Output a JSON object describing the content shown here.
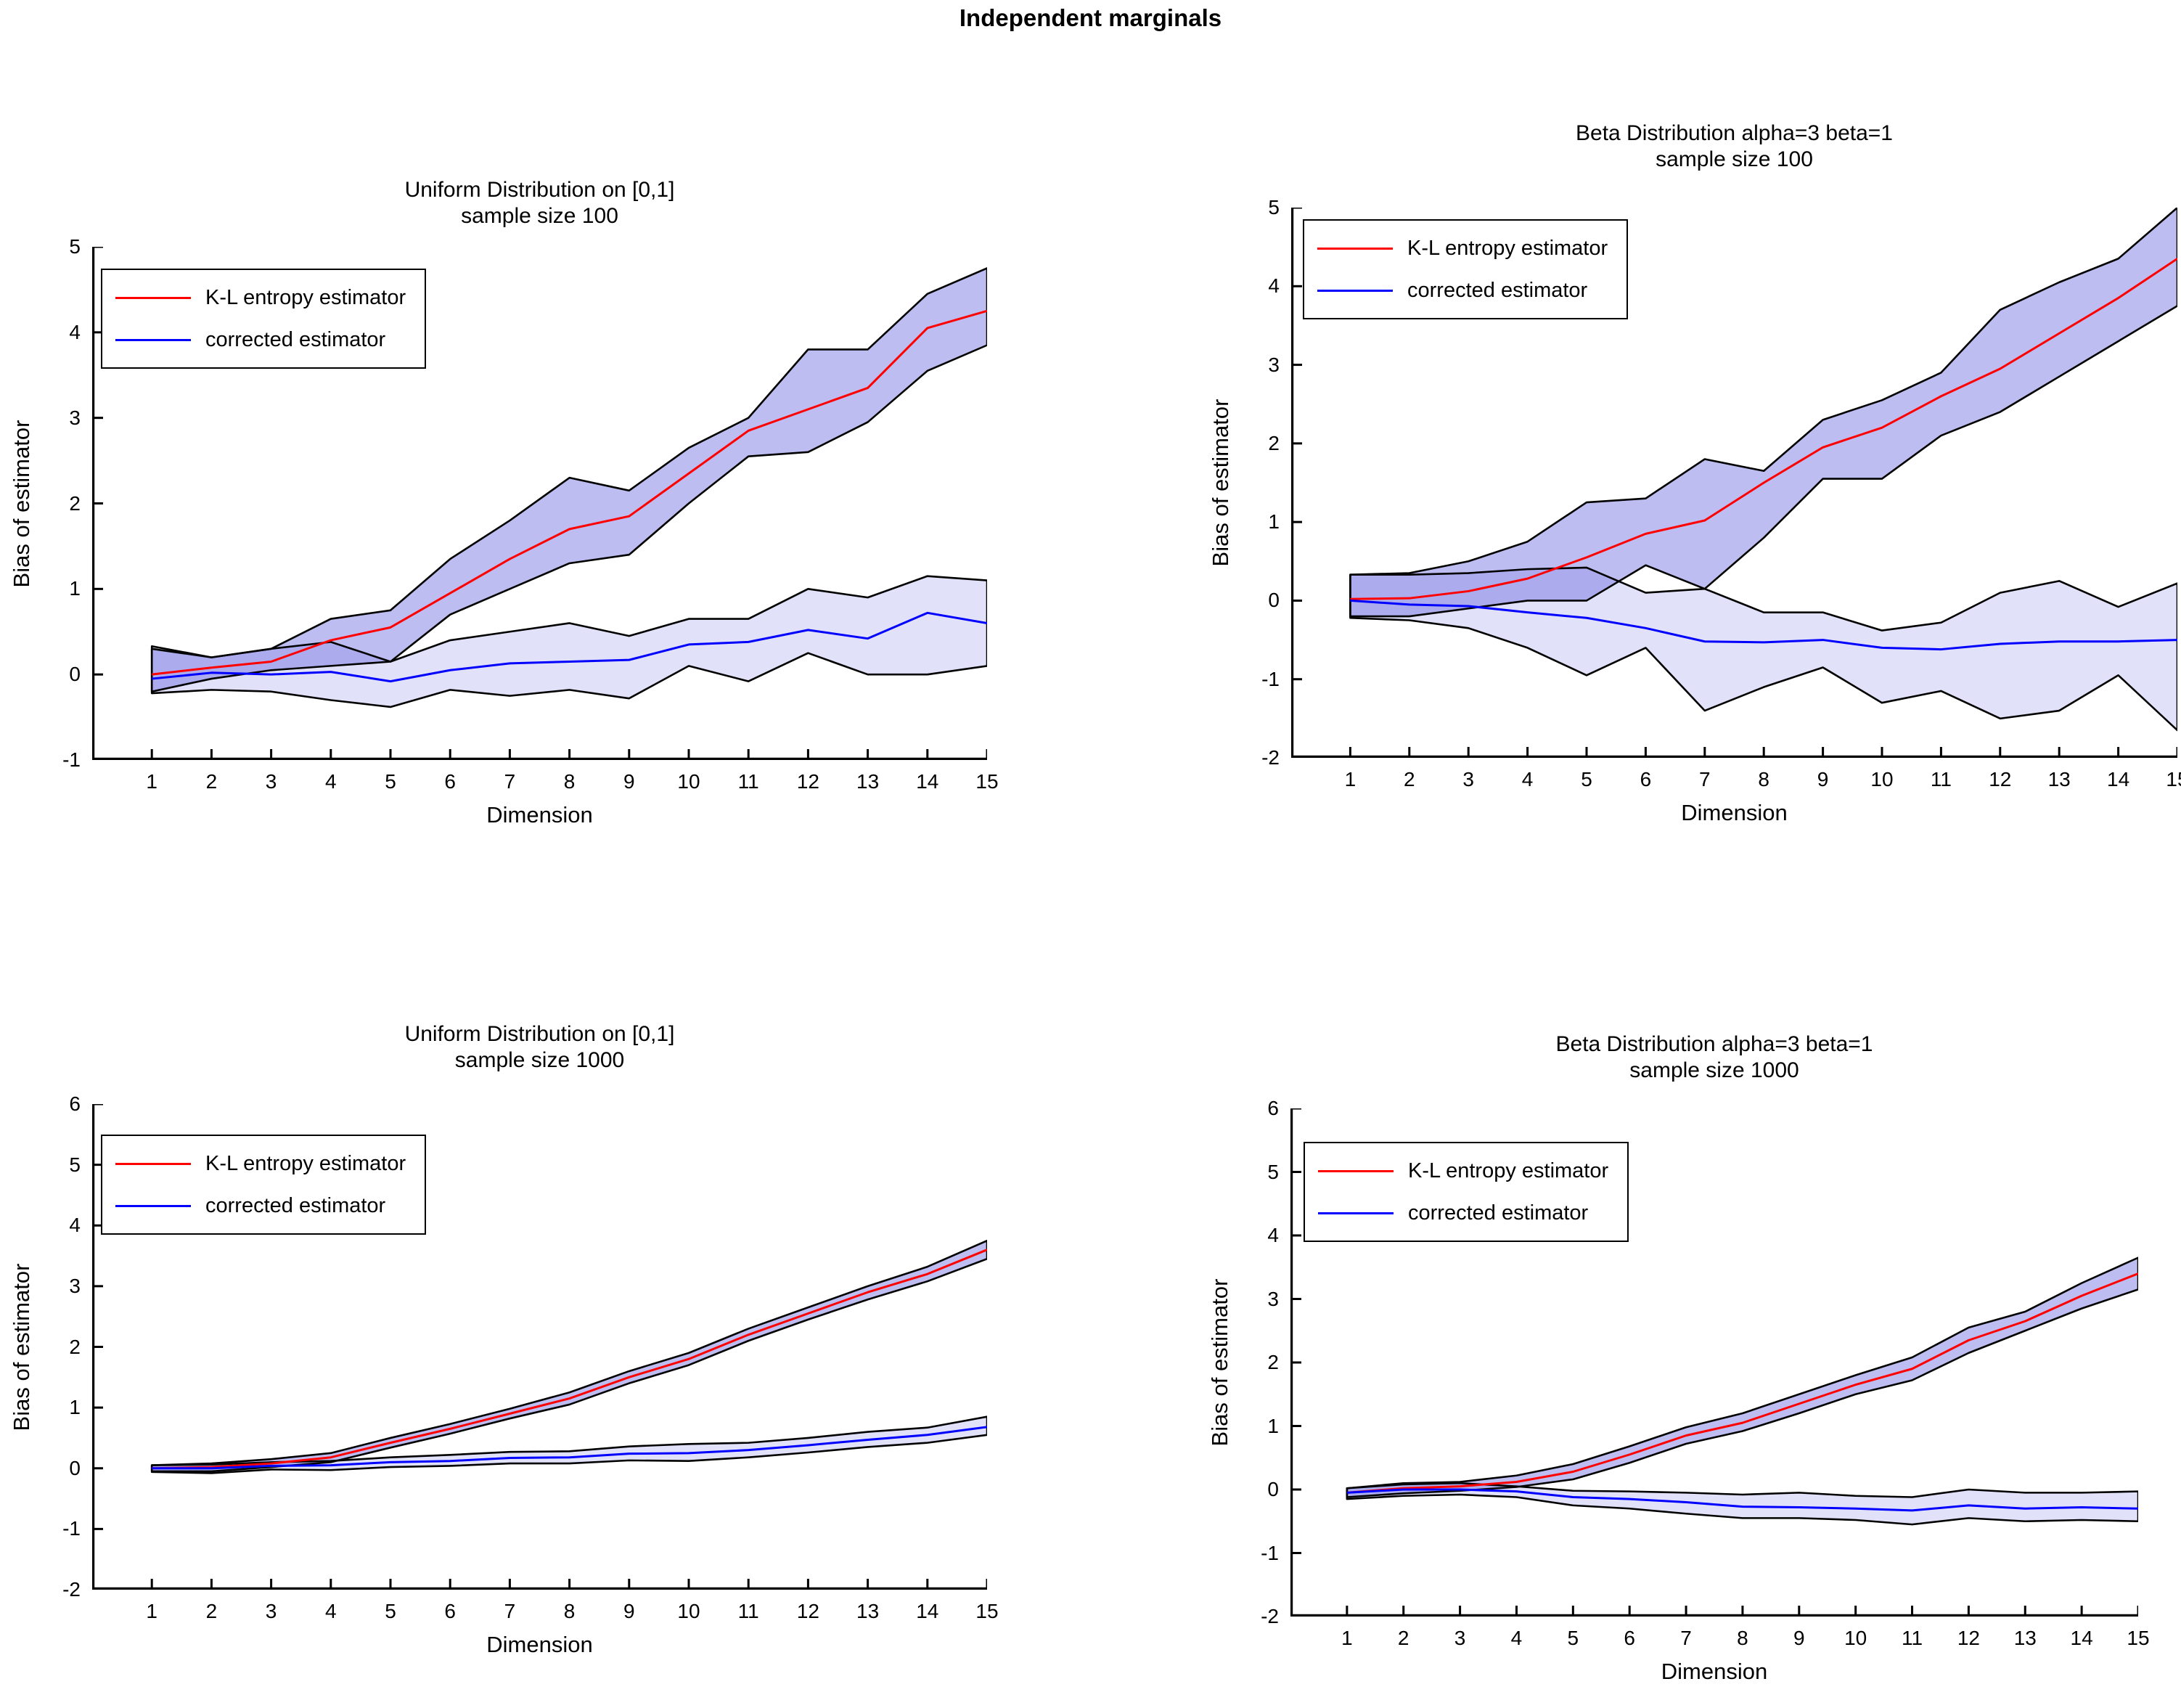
{
  "page_title": "Independent marginals",
  "colors": {
    "kl_line": "#ff0000",
    "corrected_line": "#0000ff",
    "band_fill": "#5a5adc",
    "edge": "#000000",
    "background": "#ffffff"
  },
  "chart_data": [
    {
      "type": "line",
      "title_line1": "Uniform Distribution on [0,1]",
      "title_line2": "sample size 100",
      "xlabel": "Dimension",
      "ylabel": "Bias of estimator",
      "legend_position": "top-left",
      "grid": false,
      "x": [
        1,
        2,
        3,
        4,
        5,
        6,
        7,
        8,
        9,
        10,
        11,
        12,
        13,
        14,
        15
      ],
      "xlim": [
        0,
        15
      ],
      "ylim": [
        -1,
        5
      ],
      "xticks": [
        1,
        2,
        3,
        4,
        5,
        6,
        7,
        8,
        9,
        10,
        11,
        12,
        13,
        14,
        15
      ],
      "yticks": [
        -1,
        0,
        1,
        2,
        3,
        4,
        5
      ],
      "series": [
        {
          "name": "K-L entropy estimator",
          "color": "#ff0000",
          "band_opacity": 0.4,
          "mean": [
            0.0,
            0.08,
            0.15,
            0.4,
            0.55,
            0.95,
            1.35,
            1.7,
            1.85,
            2.35,
            2.85,
            3.1,
            3.35,
            4.05,
            4.25
          ],
          "upper": [
            0.3,
            0.2,
            0.3,
            0.65,
            0.75,
            1.35,
            1.8,
            2.3,
            2.15,
            2.65,
            3.0,
            3.8,
            3.8,
            4.45,
            4.75
          ],
          "lower": [
            -0.2,
            -0.05,
            0.05,
            0.1,
            0.15,
            0.7,
            1.0,
            1.3,
            1.4,
            2.0,
            2.55,
            2.6,
            2.95,
            3.55,
            3.85
          ]
        },
        {
          "name": "corrected estimator",
          "color": "#0000ff",
          "band_opacity": 0.18,
          "mean": [
            -0.05,
            0.02,
            0.0,
            0.03,
            -0.08,
            0.05,
            0.13,
            0.15,
            0.17,
            0.35,
            0.38,
            0.52,
            0.42,
            0.72,
            0.6
          ],
          "upper": [
            0.33,
            0.2,
            0.3,
            0.38,
            0.15,
            0.4,
            0.5,
            0.6,
            0.45,
            0.65,
            0.65,
            1.0,
            0.9,
            1.15,
            1.1
          ],
          "lower": [
            -0.22,
            -0.18,
            -0.2,
            -0.3,
            -0.38,
            -0.18,
            -0.25,
            -0.18,
            -0.28,
            0.1,
            -0.08,
            0.25,
            0.0,
            0.0,
            0.1
          ]
        }
      ]
    },
    {
      "type": "line",
      "title_line1": "Beta Distribution alpha=3 beta=1",
      "title_line2": "sample size 100",
      "xlabel": "Dimension",
      "ylabel": "Bias of estimator",
      "legend_position": "top-left",
      "grid": false,
      "x": [
        1,
        2,
        3,
        4,
        5,
        6,
        7,
        8,
        9,
        10,
        11,
        12,
        13,
        14,
        15
      ],
      "xlim": [
        0,
        15
      ],
      "ylim": [
        -2,
        5
      ],
      "xticks": [
        1,
        2,
        3,
        4,
        5,
        6,
        7,
        8,
        9,
        10,
        11,
        12,
        13,
        14,
        15
      ],
      "yticks": [
        -2,
        -1,
        0,
        1,
        2,
        3,
        4,
        5
      ],
      "series": [
        {
          "name": "K-L entropy estimator",
          "color": "#ff0000",
          "band_opacity": 0.4,
          "mean": [
            0.02,
            0.03,
            0.12,
            0.28,
            0.55,
            0.85,
            1.02,
            1.5,
            1.95,
            2.2,
            2.6,
            2.95,
            3.4,
            3.85,
            4.35
          ],
          "upper": [
            0.33,
            0.35,
            0.5,
            0.75,
            1.25,
            1.3,
            1.8,
            1.65,
            2.3,
            2.55,
            2.9,
            3.7,
            4.05,
            4.35,
            5.0
          ],
          "lower": [
            -0.2,
            -0.2,
            -0.1,
            0.0,
            0.0,
            0.45,
            0.15,
            0.8,
            1.55,
            1.55,
            2.1,
            2.4,
            2.85,
            3.3,
            3.75
          ]
        },
        {
          "name": "corrected estimator",
          "color": "#0000ff",
          "band_opacity": 0.18,
          "mean": [
            0.0,
            -0.05,
            -0.07,
            -0.15,
            -0.22,
            -0.35,
            -0.52,
            -0.53,
            -0.5,
            -0.6,
            -0.62,
            -0.55,
            -0.52,
            -0.52,
            -0.5
          ],
          "upper": [
            0.33,
            0.33,
            0.35,
            0.4,
            0.42,
            0.1,
            0.15,
            -0.15,
            -0.15,
            -0.38,
            -0.28,
            0.1,
            0.25,
            -0.08,
            0.22
          ],
          "lower": [
            -0.22,
            -0.25,
            -0.35,
            -0.6,
            -0.95,
            -0.6,
            -1.4,
            -1.1,
            -0.85,
            -1.3,
            -1.15,
            -1.5,
            -1.4,
            -0.95,
            -1.65
          ]
        }
      ]
    },
    {
      "type": "line",
      "title_line1": "Uniform Distribution on [0,1]",
      "title_line2": "sample size 1000",
      "xlabel": "Dimension",
      "ylabel": "Bias of estimator",
      "legend_position": "top-left",
      "grid": false,
      "x": [
        1,
        2,
        3,
        4,
        5,
        6,
        7,
        8,
        9,
        10,
        11,
        12,
        13,
        14,
        15
      ],
      "xlim": [
        0,
        15
      ],
      "ylim": [
        -2,
        6
      ],
      "xticks": [
        1,
        2,
        3,
        4,
        5,
        6,
        7,
        8,
        9,
        10,
        11,
        12,
        13,
        14,
        15
      ],
      "yticks": [
        -2,
        -1,
        0,
        1,
        2,
        3,
        4,
        5,
        6
      ],
      "series": [
        {
          "name": "K-L entropy estimator",
          "color": "#ff0000",
          "band_opacity": 0.4,
          "mean": [
            0.0,
            0.02,
            0.08,
            0.18,
            0.42,
            0.65,
            0.9,
            1.15,
            1.5,
            1.8,
            2.2,
            2.55,
            2.9,
            3.2,
            3.6
          ],
          "upper": [
            0.05,
            0.08,
            0.15,
            0.25,
            0.5,
            0.73,
            0.98,
            1.25,
            1.6,
            1.9,
            2.3,
            2.65,
            3.0,
            3.32,
            3.75
          ],
          "lower": [
            -0.05,
            -0.05,
            0.02,
            0.1,
            0.34,
            0.57,
            0.82,
            1.05,
            1.4,
            1.7,
            2.1,
            2.45,
            2.78,
            3.08,
            3.45
          ]
        },
        {
          "name": "corrected estimator",
          "color": "#0000ff",
          "band_opacity": 0.18,
          "mean": [
            0.0,
            0.0,
            0.04,
            0.05,
            0.1,
            0.12,
            0.17,
            0.18,
            0.24,
            0.25,
            0.3,
            0.38,
            0.47,
            0.55,
            0.68
          ],
          "upper": [
            0.05,
            0.06,
            0.1,
            0.12,
            0.18,
            0.22,
            0.27,
            0.28,
            0.36,
            0.4,
            0.42,
            0.5,
            0.6,
            0.67,
            0.85
          ],
          "lower": [
            -0.06,
            -0.08,
            -0.02,
            -0.03,
            0.02,
            0.04,
            0.08,
            0.08,
            0.13,
            0.12,
            0.18,
            0.26,
            0.35,
            0.42,
            0.55
          ]
        }
      ]
    },
    {
      "type": "line",
      "title_line1": "Beta Distribution alpha=3 beta=1",
      "title_line2": "sample size 1000",
      "xlabel": "Dimension",
      "ylabel": "Bias of estimator",
      "legend_position": "top-left",
      "grid": false,
      "x": [
        1,
        2,
        3,
        4,
        5,
        6,
        7,
        8,
        9,
        10,
        11,
        12,
        13,
        14,
        15
      ],
      "xlim": [
        0,
        15
      ],
      "ylim": [
        -2,
        6
      ],
      "xticks": [
        1,
        2,
        3,
        4,
        5,
        6,
        7,
        8,
        9,
        10,
        11,
        12,
        13,
        14,
        15
      ],
      "yticks": [
        -2,
        -1,
        0,
        1,
        2,
        3,
        4,
        5,
        6
      ],
      "series": [
        {
          "name": "K-L entropy estimator",
          "color": "#ff0000",
          "band_opacity": 0.4,
          "mean": [
            -0.05,
            0.02,
            0.05,
            0.12,
            0.28,
            0.55,
            0.85,
            1.05,
            1.35,
            1.65,
            1.9,
            2.35,
            2.65,
            3.05,
            3.4
          ],
          "upper": [
            0.02,
            0.1,
            0.12,
            0.22,
            0.4,
            0.68,
            0.98,
            1.2,
            1.5,
            1.8,
            2.08,
            2.55,
            2.8,
            3.25,
            3.65
          ],
          "lower": [
            -0.12,
            -0.06,
            -0.02,
            0.04,
            0.16,
            0.42,
            0.72,
            0.92,
            1.2,
            1.5,
            1.72,
            2.15,
            2.5,
            2.85,
            3.15
          ]
        },
        {
          "name": "corrected estimator",
          "color": "#0000ff",
          "band_opacity": 0.18,
          "mean": [
            -0.05,
            0.0,
            0.0,
            -0.03,
            -0.12,
            -0.15,
            -0.2,
            -0.27,
            -0.28,
            -0.3,
            -0.33,
            -0.25,
            -0.3,
            -0.28,
            -0.3
          ],
          "upper": [
            0.02,
            0.08,
            0.1,
            0.05,
            -0.02,
            -0.03,
            -0.05,
            -0.08,
            -0.05,
            -0.1,
            -0.12,
            0.0,
            -0.05,
            -0.05,
            -0.03
          ],
          "lower": [
            -0.15,
            -0.1,
            -0.08,
            -0.12,
            -0.25,
            -0.3,
            -0.38,
            -0.45,
            -0.45,
            -0.48,
            -0.55,
            -0.45,
            -0.5,
            -0.48,
            -0.5
          ]
        }
      ]
    }
  ]
}
